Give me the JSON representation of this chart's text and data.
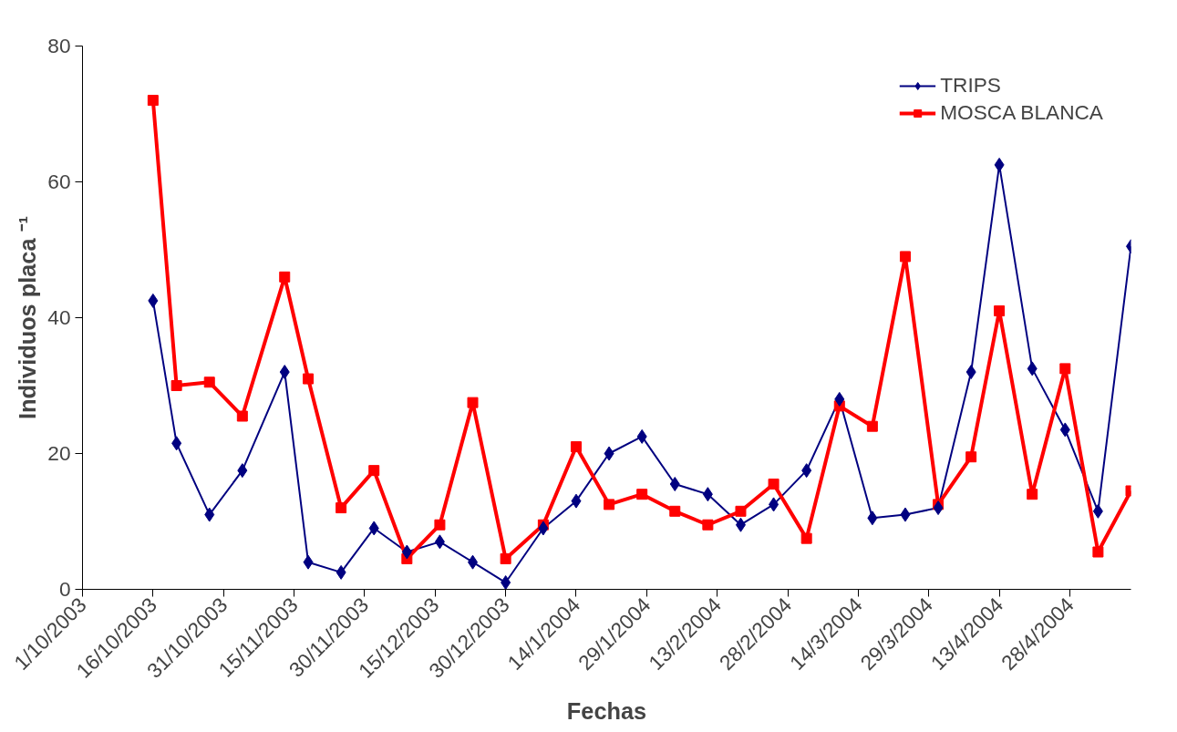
{
  "chart_data": {
    "type": "line",
    "xlabel": "Fechas",
    "ylabel": "Individuos placa ⁻¹",
    "x": [
      "2003-10-16",
      "2003-10-21",
      "2003-10-28",
      "2003-11-04",
      "2003-11-13",
      "2003-11-18",
      "2003-11-25",
      "2003-12-02",
      "2003-12-09",
      "2003-12-16",
      "2003-12-23",
      "2003-12-30",
      "2004-01-07",
      "2004-01-14",
      "2004-01-21",
      "2004-01-28",
      "2004-02-04",
      "2004-02-11",
      "2004-02-18",
      "2004-02-25",
      "2004-03-03",
      "2004-03-10",
      "2004-03-17",
      "2004-03-24",
      "2004-03-31",
      "2004-04-07",
      "2004-04-13",
      "2004-04-20",
      "2004-04-27",
      "2004-05-04",
      "2004-05-11"
    ],
    "series": [
      {
        "name": "TRIPS",
        "color": "#000080",
        "marker": "diamond",
        "values": [
          42.5,
          21.5,
          11,
          17.5,
          32,
          4,
          2.5,
          9,
          5.5,
          7,
          4,
          1,
          9,
          13,
          20,
          22.5,
          15.5,
          14,
          9.5,
          12.5,
          17.5,
          28,
          10.5,
          11,
          12,
          32,
          62.5,
          32.5,
          23.5,
          11.5,
          50.5
        ]
      },
      {
        "name": "MOSCA BLANCA",
        "color": "#ff0000",
        "marker": "square",
        "values": [
          72,
          30,
          30.5,
          25.5,
          46,
          31,
          12,
          17.5,
          4.5,
          9.5,
          27.5,
          4.5,
          9.5,
          21,
          12.5,
          14,
          11.5,
          9.5,
          11.5,
          15.5,
          7.5,
          27,
          24,
          49,
          12.5,
          19.5,
          41,
          14,
          32.5,
          5.5,
          14.5
        ]
      }
    ],
    "xlim": [
      "2003-10-01",
      "2004-05-11"
    ],
    "xticks": [
      {
        "value": "2003-10-01",
        "label": "1/10/2003"
      },
      {
        "value": "2003-10-16",
        "label": "16/10/2003"
      },
      {
        "value": "2003-10-31",
        "label": "31/10/2003"
      },
      {
        "value": "2003-11-15",
        "label": "15/11/2003"
      },
      {
        "value": "2003-11-30",
        "label": "30/11/2003"
      },
      {
        "value": "2003-12-15",
        "label": "15/12/2003"
      },
      {
        "value": "2003-12-30",
        "label": "30/12/2003"
      },
      {
        "value": "2004-01-14",
        "label": "14/1/2004"
      },
      {
        "value": "2004-01-29",
        "label": "29/1/2004"
      },
      {
        "value": "2004-02-13",
        "label": "13/2/2004"
      },
      {
        "value": "2004-02-28",
        "label": "28/2/2004"
      },
      {
        "value": "2004-03-14",
        "label": "14/3/2004"
      },
      {
        "value": "2004-03-29",
        "label": "29/3/2004"
      },
      {
        "value": "2004-04-13",
        "label": "13/4/2004"
      },
      {
        "value": "2004-04-28",
        "label": "28/4/2004"
      }
    ],
    "ylim": [
      0,
      80
    ],
    "yticks": [
      0,
      20,
      40,
      60,
      80
    ],
    "grid": false,
    "legend": "top right",
    "line_style": "solid"
  }
}
